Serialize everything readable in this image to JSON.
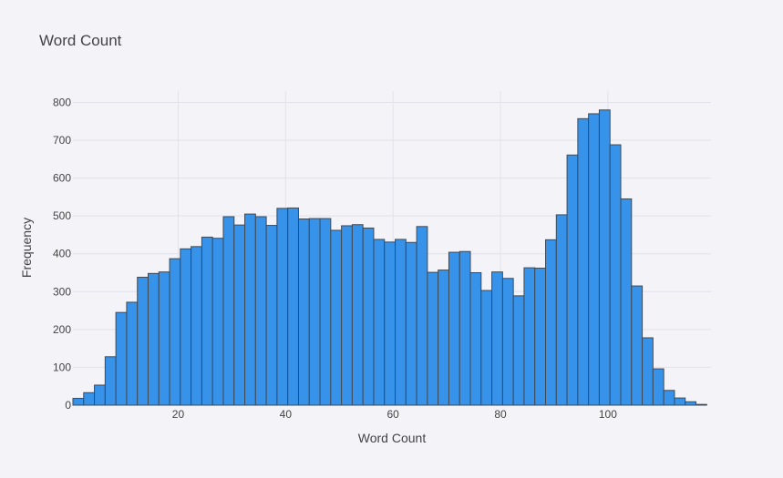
{
  "chart_data": {
    "type": "bar",
    "title": "Word Count",
    "xlabel": "Word Count",
    "ylabel": "Frequency",
    "bar_color": "#3792ea",
    "bar_edge_color": "#3f4a56",
    "background": "#f3f3f8",
    "grid": true,
    "xlim": [
      0.4,
      119.2
    ],
    "ylim": [
      0,
      830
    ],
    "bin_width": 2,
    "x_start": 0.4,
    "xticks": [
      20,
      40,
      60,
      80,
      100
    ],
    "yticks": [
      0,
      100,
      200,
      300,
      400,
      500,
      600,
      700,
      800
    ],
    "values": [
      18,
      33,
      53,
      128,
      245,
      272,
      338,
      348,
      352,
      387,
      413,
      419,
      444,
      441,
      498,
      476,
      505,
      498,
      475,
      520,
      521,
      492,
      493,
      493,
      462,
      474,
      477,
      468,
      438,
      431,
      438,
      430,
      472,
      351,
      357,
      404,
      406,
      350,
      303,
      352,
      335,
      289,
      363,
      362,
      437,
      503,
      661,
      757,
      770,
      780,
      688,
      545,
      315,
      178,
      96,
      39,
      19,
      9,
      2
    ]
  }
}
